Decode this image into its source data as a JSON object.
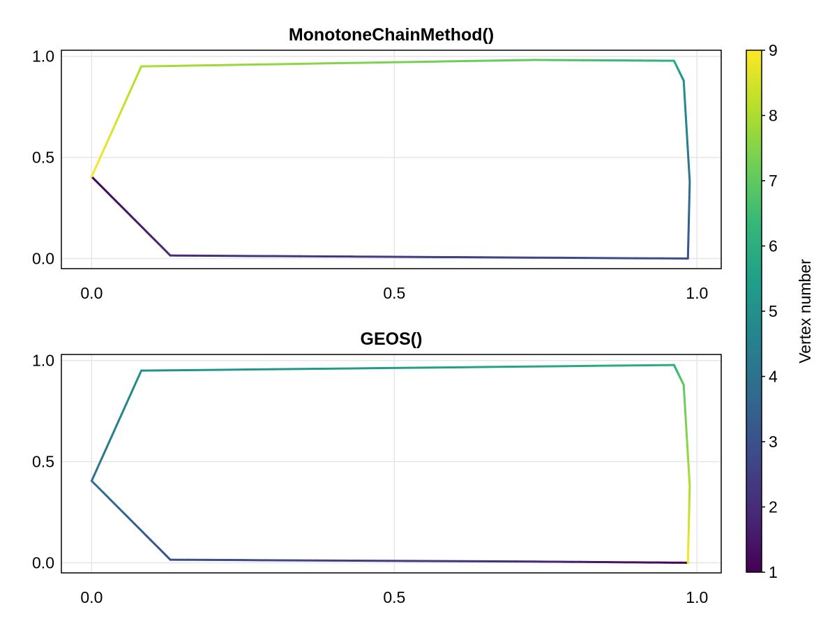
{
  "chart_data": [
    {
      "type": "line",
      "title": "MonotoneChainMethod()",
      "xlim": [
        -0.05,
        1.04
      ],
      "ylim": [
        -0.05,
        1.03
      ],
      "xticks": [
        0.0,
        0.5,
        1.0
      ],
      "xtick_labels": [
        "0.0",
        "0.5",
        "1.0"
      ],
      "yticks": [
        0.0,
        0.5,
        1.0
      ],
      "ytick_labels": [
        "0.0",
        "0.5",
        "1.0"
      ],
      "grid": true,
      "x": [
        0.0,
        0.13,
        0.985,
        0.988,
        0.978,
        0.962,
        0.73,
        0.082,
        0.0
      ],
      "y": [
        0.405,
        0.015,
        0.0,
        0.38,
        0.88,
        0.978,
        0.982,
        0.95,
        0.405
      ],
      "vertex_numbers": [
        1,
        2,
        3,
        4,
        5,
        6,
        7,
        8,
        9
      ]
    },
    {
      "type": "line",
      "title": "GEOS()",
      "xlim": [
        -0.05,
        1.04
      ],
      "ylim": [
        -0.05,
        1.03
      ],
      "xticks": [
        0.0,
        0.5,
        1.0
      ],
      "xtick_labels": [
        "0.0",
        "0.5",
        "1.0"
      ],
      "yticks": [
        0.0,
        0.5,
        1.0
      ],
      "ytick_labels": [
        "0.0",
        "0.5",
        "1.0"
      ],
      "grid": true,
      "x": [
        0.985,
        0.73,
        0.13,
        0.0,
        0.082,
        0.962,
        0.978,
        0.988,
        0.985
      ],
      "y": [
        0.0,
        0.006,
        0.015,
        0.405,
        0.95,
        0.978,
        0.88,
        0.38,
        0.0
      ],
      "vertex_numbers": [
        1,
        2,
        3,
        4,
        5,
        6,
        7,
        8,
        9
      ]
    }
  ],
  "colorbar": {
    "label": "Vertex number",
    "min": 1,
    "max": 9,
    "ticks": [
      1,
      2,
      3,
      4,
      5,
      6,
      7,
      8,
      9
    ],
    "tick_labels": [
      "1",
      "2",
      "3",
      "4",
      "5",
      "6",
      "7",
      "8",
      "9"
    ],
    "colormap": "viridis",
    "colors": [
      "#440154",
      "#482878",
      "#3e4989",
      "#31688e",
      "#26828e",
      "#1f9e89",
      "#35b779",
      "#6ece58",
      "#b5de2b",
      "#fde725"
    ]
  }
}
